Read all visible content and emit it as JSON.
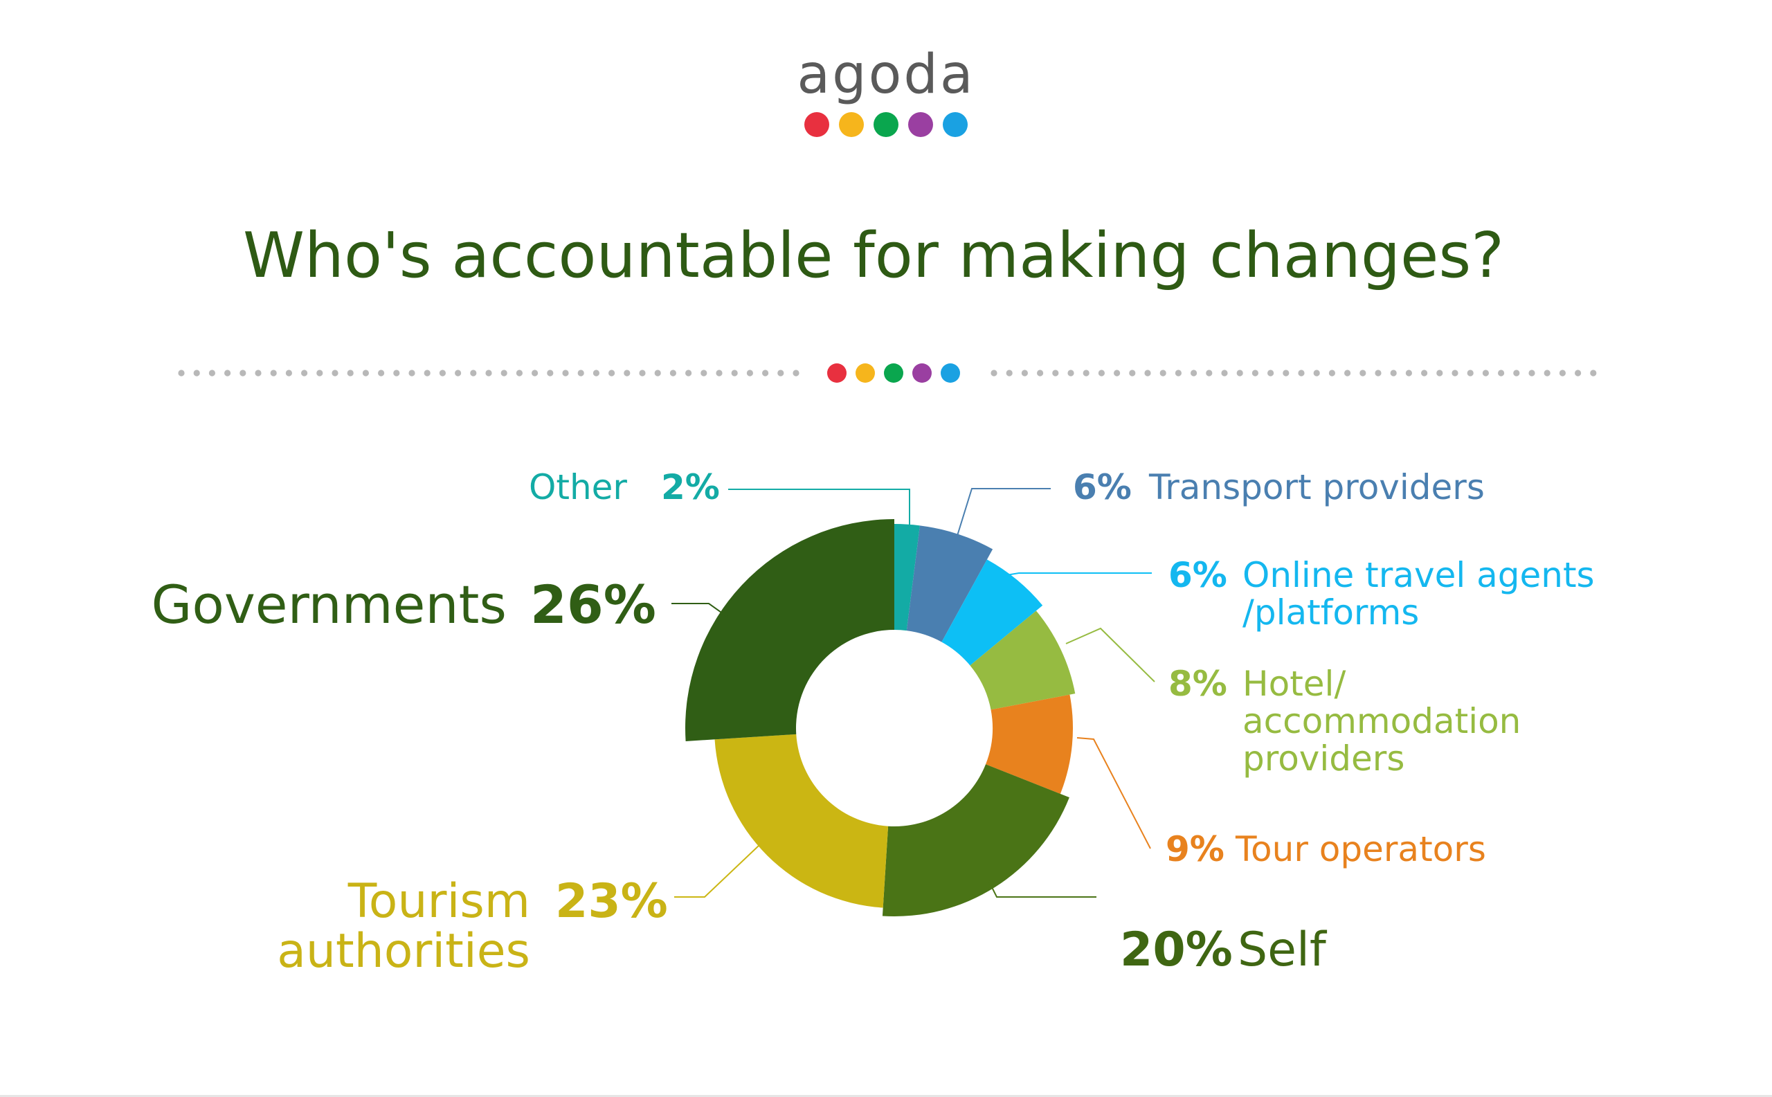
{
  "logo": {
    "text": "agoda",
    "dot_colors": [
      "#e8303f",
      "#f6b51c",
      "#0aa64e",
      "#9a3fa1",
      "#1aa1e2"
    ]
  },
  "title": "Who's accountable for making changes?",
  "divider": {
    "dot_color": "#b8b8b8",
    "dot_colors": [
      "#e8303f",
      "#f6b51c",
      "#0aa64e",
      "#9a3fa1",
      "#1aa1e2"
    ]
  },
  "chart_data": {
    "type": "pie",
    "style": "donut",
    "title": "Who's accountable for making changes?",
    "start_angle_deg": 0,
    "direction": "clockwise",
    "slices": [
      {
        "key": "other",
        "label": "Other",
        "value": 2,
        "pct_label": "2%",
        "color": "#13aba5",
        "label_color": "#13aba5"
      },
      {
        "key": "transport",
        "label": "Transport providers",
        "value": 6,
        "pct_label": "6%",
        "color": "#4a7fb0",
        "label_color": "#4a7fb0"
      },
      {
        "key": "ota",
        "label": "Online travel agents /platforms",
        "label_lines": [
          "Online travel agents",
          "/platforms"
        ],
        "value": 6,
        "pct_label": "6%",
        "color": "#0dbff5",
        "label_color": "#14b7ef"
      },
      {
        "key": "hotel",
        "label": "Hotel/ accommodation providers",
        "label_lines": [
          "Hotel/",
          "accommodation",
          "providers"
        ],
        "value": 8,
        "pct_label": "8%",
        "color": "#96bb41",
        "label_color": "#96bb41"
      },
      {
        "key": "tour",
        "label": "Tour operators",
        "value": 9,
        "pct_label": "9%",
        "color": "#e8821e",
        "label_color": "#e8821e"
      },
      {
        "key": "self",
        "label": "Self",
        "value": 20,
        "pct_label": "20%",
        "color": "#4a7416",
        "label_color": "#3f6612"
      },
      {
        "key": "tourism",
        "label": "Tourism authorities",
        "label_lines": [
          "Tourism",
          "authorities"
        ],
        "value": 23,
        "pct_label": "23%",
        "color": "#cbb613",
        "label_color": "#c9b316"
      },
      {
        "key": "governments",
        "label": "Governments",
        "value": 26,
        "pct_label": "26%",
        "color": "#305e15",
        "label_color": "#305e15"
      }
    ]
  }
}
